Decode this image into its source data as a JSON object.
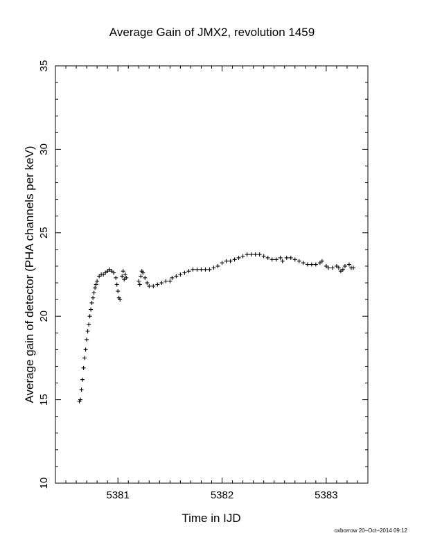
{
  "chart_data": {
    "type": "scatter",
    "title": "Average Gain of JMX2, revolution 1459",
    "xlabel": "Time in IJD",
    "ylabel": "Average gain of detector (PHA channels per keV)",
    "xlim": [
      5380.4,
      5383.4
    ],
    "ylim": [
      10,
      35
    ],
    "x_ticks": [
      5381,
      5382,
      5383
    ],
    "x_tick_labels": [
      "5381",
      "5382",
      "5383"
    ],
    "y_ticks": [
      10,
      15,
      20,
      25,
      30,
      35
    ],
    "y_tick_labels": [
      "10",
      "15",
      "20",
      "25",
      "30",
      "35"
    ],
    "grid": false,
    "marker": "+",
    "series": [
      {
        "values": [
          [
            5380.63,
            14.9
          ],
          [
            5380.64,
            15.0
          ],
          [
            5380.65,
            15.6
          ],
          [
            5380.66,
            16.2
          ],
          [
            5380.67,
            16.9
          ],
          [
            5380.68,
            17.5
          ],
          [
            5380.69,
            18.0
          ],
          [
            5380.7,
            18.6
          ],
          [
            5380.71,
            19.1
          ],
          [
            5380.72,
            19.5
          ],
          [
            5380.73,
            20.0
          ],
          [
            5380.74,
            20.4
          ],
          [
            5380.75,
            20.8
          ],
          [
            5380.76,
            21.1
          ],
          [
            5380.77,
            21.4
          ],
          [
            5380.78,
            21.7
          ],
          [
            5380.79,
            21.9
          ],
          [
            5380.8,
            22.1
          ],
          [
            5380.82,
            22.4
          ],
          [
            5380.84,
            22.5
          ],
          [
            5380.86,
            22.5
          ],
          [
            5380.88,
            22.6
          ],
          [
            5380.9,
            22.7
          ],
          [
            5380.92,
            22.8
          ],
          [
            5380.94,
            22.7
          ],
          [
            5380.96,
            22.6
          ],
          [
            5380.98,
            22.3
          ],
          [
            5380.99,
            21.9
          ],
          [
            5381.0,
            21.5
          ],
          [
            5381.01,
            21.1
          ],
          [
            5381.02,
            21.0
          ],
          [
            5381.04,
            22.4
          ],
          [
            5381.05,
            22.7
          ],
          [
            5381.06,
            22.2
          ],
          [
            5381.07,
            22.5
          ],
          [
            5381.08,
            22.3
          ],
          [
            5381.2,
            22.1
          ],
          [
            5381.21,
            21.9
          ],
          [
            5381.22,
            22.4
          ],
          [
            5381.23,
            22.7
          ],
          [
            5381.24,
            22.6
          ],
          [
            5381.26,
            22.3
          ],
          [
            5381.28,
            22.0
          ],
          [
            5381.3,
            21.8
          ],
          [
            5381.34,
            21.8
          ],
          [
            5381.38,
            21.9
          ],
          [
            5381.42,
            22.0
          ],
          [
            5381.46,
            22.1
          ],
          [
            5381.5,
            22.1
          ],
          [
            5381.52,
            22.3
          ],
          [
            5381.56,
            22.4
          ],
          [
            5381.6,
            22.5
          ],
          [
            5381.64,
            22.6
          ],
          [
            5381.68,
            22.7
          ],
          [
            5381.72,
            22.8
          ],
          [
            5381.76,
            22.8
          ],
          [
            5381.8,
            22.8
          ],
          [
            5381.84,
            22.8
          ],
          [
            5381.88,
            22.8
          ],
          [
            5381.92,
            22.9
          ],
          [
            5381.96,
            23.0
          ],
          [
            5382.0,
            23.2
          ],
          [
            5382.04,
            23.3
          ],
          [
            5382.08,
            23.3
          ],
          [
            5382.12,
            23.4
          ],
          [
            5382.16,
            23.5
          ],
          [
            5382.2,
            23.6
          ],
          [
            5382.24,
            23.7
          ],
          [
            5382.28,
            23.7
          ],
          [
            5382.32,
            23.7
          ],
          [
            5382.36,
            23.7
          ],
          [
            5382.4,
            23.6
          ],
          [
            5382.44,
            23.5
          ],
          [
            5382.48,
            23.4
          ],
          [
            5382.52,
            23.4
          ],
          [
            5382.56,
            23.5
          ],
          [
            5382.58,
            23.3
          ],
          [
            5382.62,
            23.5
          ],
          [
            5382.66,
            23.5
          ],
          [
            5382.7,
            23.4
          ],
          [
            5382.74,
            23.3
          ],
          [
            5382.78,
            23.2
          ],
          [
            5382.82,
            23.1
          ],
          [
            5382.86,
            23.1
          ],
          [
            5382.9,
            23.1
          ],
          [
            5382.94,
            23.2
          ],
          [
            5382.96,
            23.3
          ],
          [
            5383.0,
            23.0
          ],
          [
            5383.02,
            22.9
          ],
          [
            5383.06,
            22.9
          ],
          [
            5383.1,
            23.0
          ],
          [
            5383.12,
            22.9
          ],
          [
            5383.14,
            22.7
          ],
          [
            5383.16,
            22.8
          ],
          [
            5383.18,
            23.0
          ],
          [
            5383.22,
            23.1
          ],
          [
            5383.24,
            22.9
          ],
          [
            5383.26,
            22.9
          ]
        ]
      }
    ]
  },
  "footer": {
    "credit": "oxborrow 20–Oct–2014 09:12"
  }
}
